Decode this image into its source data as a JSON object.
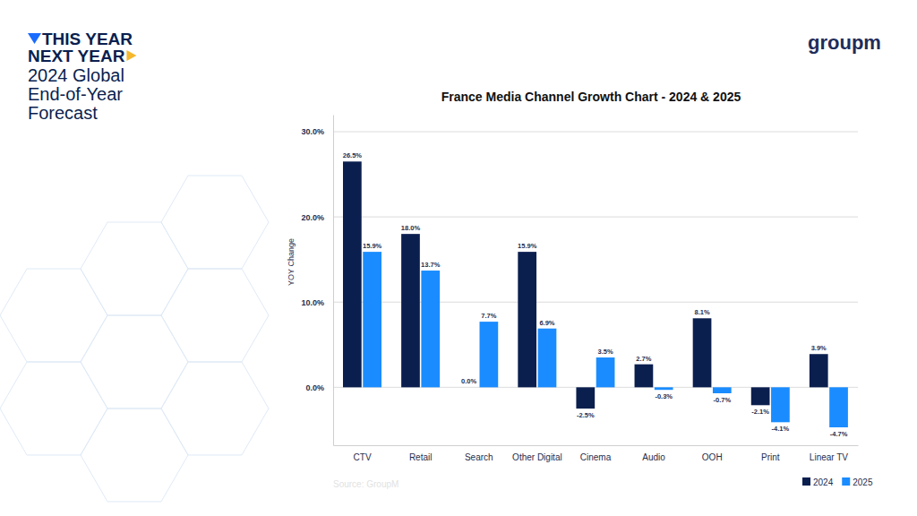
{
  "header": {
    "line1": "THIS YEAR",
    "line2": "NEXT YEAR",
    "subtitle_lines": [
      "2024 Global",
      "End-of-Year",
      "Forecast"
    ],
    "logo": "groupm"
  },
  "chart_data": {
    "type": "bar",
    "title": "France Media Channel Growth Chart - 2024 & 2025",
    "y_label": "YOY Change",
    "source": "Source: GroupM",
    "categories": [
      "CTV",
      "Retail",
      "Search",
      "Other Digital",
      "Cinema",
      "Audio",
      "OOH",
      "Print",
      "Linear TV"
    ],
    "series": [
      {
        "name": "2024",
        "color": "#0b1f4f",
        "values": [
          26.5,
          18.0,
          0.0,
          15.9,
          -2.5,
          2.7,
          8.1,
          -2.1,
          3.9
        ],
        "value_labels": [
          "26.5%",
          "18.0%",
          "0.0%",
          "15.9%",
          "-2.5%",
          "2.7%",
          "8.1%",
          "-2.1%",
          "3.9%"
        ]
      },
      {
        "name": "2025",
        "color": "#1a8cff",
        "values": [
          15.9,
          13.7,
          7.7,
          6.9,
          3.5,
          -0.3,
          -0.7,
          -4.1,
          -4.7
        ],
        "value_labels": [
          "15.9%",
          "13.7%",
          "7.7%",
          "6.9%",
          "3.5%",
          "-0.3%",
          "-0.7%",
          "-4.1%",
          "-4.7%"
        ]
      }
    ],
    "ylim": [
      -6.8,
      32
    ],
    "yticks": [
      {
        "value": 0,
        "label": "0.0%"
      },
      {
        "value": 10,
        "label": "10.0%"
      },
      {
        "value": 20,
        "label": "20.0%"
      },
      {
        "value": 30,
        "label": "30.0%"
      }
    ],
    "grid": true,
    "data_labels": true,
    "legend": "bottom-right"
  }
}
